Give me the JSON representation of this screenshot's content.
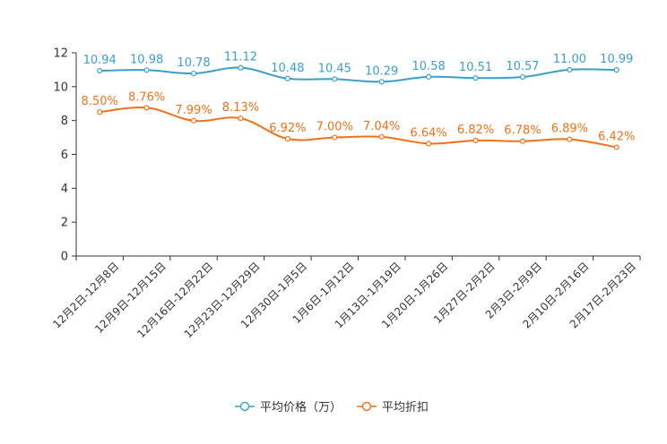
{
  "chart_data": {
    "type": "line",
    "categories": [
      "12月2日-12月8日",
      "12月9日-12月15日",
      "12月16日-12月22日",
      "12月23日-12月29日",
      "12月30日-1月5日",
      "1月6日-1月12日",
      "1月13日-1月19日",
      "1月20日-1月26日",
      "1月27日-2月2日",
      "2月3日-2月9日",
      "2月10日-2月16日",
      "2月17日-2月23日"
    ],
    "series": [
      {
        "name": "平均价格（万）",
        "values": [
          10.94,
          10.98,
          10.78,
          11.12,
          10.48,
          10.45,
          10.29,
          10.58,
          10.51,
          10.57,
          11.0,
          10.99
        ],
        "labels": [
          "10.94",
          "10.98",
          "10.78",
          "11.12",
          "10.48",
          "10.45",
          "10.29",
          "10.58",
          "10.51",
          "10.57",
          "11.00",
          "10.99"
        ],
        "color": "#3a9fcd"
      },
      {
        "name": "平均折扣",
        "values": [
          8.5,
          8.76,
          7.99,
          8.13,
          6.92,
          7.0,
          7.04,
          6.64,
          6.82,
          6.78,
          6.89,
          6.42
        ],
        "labels": [
          "8.50%",
          "8.76%",
          "7.99%",
          "8.13%",
          "6.92%",
          "7.00%",
          "7.04%",
          "6.64%",
          "6.82%",
          "6.78%",
          "6.89%",
          "6.42%"
        ],
        "color": "#f07118"
      }
    ],
    "yticks": [
      "0",
      "2",
      "4",
      "6",
      "8",
      "10",
      "12"
    ],
    "ylim": [
      0,
      12
    ],
    "title": "",
    "xlabel": "",
    "ylabel": "",
    "legend_position": "bottom-center",
    "grid": false
  }
}
